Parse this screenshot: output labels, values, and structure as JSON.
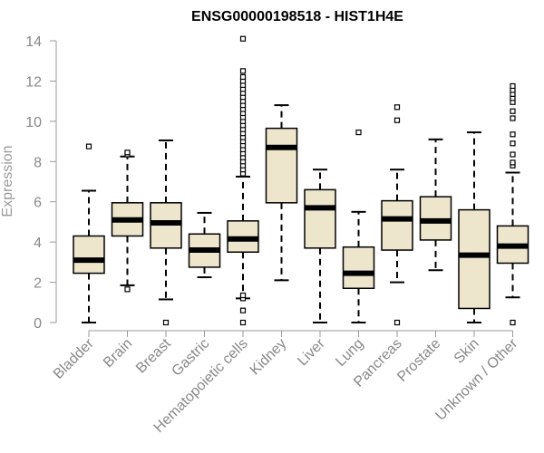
{
  "chart_data": {
    "type": "boxplot",
    "title": "ENSG00000198518 - HIST1H4E",
    "xlabel": "",
    "ylabel": "Expression",
    "ylim": [
      0,
      14
    ],
    "yticks": [
      0,
      2,
      4,
      6,
      8,
      10,
      12,
      14
    ],
    "categories": [
      "Bladder",
      "Brain",
      "Breast",
      "Gastric",
      "Hematopoietic cells",
      "Kidney",
      "Liver",
      "Lung",
      "Pancreas",
      "Prostate",
      "Skin",
      "Unknown / Other"
    ],
    "boxes": [
      {
        "name": "Bladder",
        "whisker_low": 0.0,
        "q1": 2.45,
        "median": 3.1,
        "q3": 4.3,
        "whisker_high": 6.55,
        "outliers": [
          8.75
        ]
      },
      {
        "name": "Brain",
        "whisker_low": 1.85,
        "q1": 4.3,
        "median": 5.1,
        "q3": 5.95,
        "whisker_high": 8.25,
        "outliers": [
          1.65,
          8.35,
          8.45
        ]
      },
      {
        "name": "Breast",
        "whisker_low": 1.15,
        "q1": 3.7,
        "median": 4.95,
        "q3": 5.95,
        "whisker_high": 9.05,
        "outliers": [
          0.0
        ]
      },
      {
        "name": "Gastric",
        "whisker_low": 2.25,
        "q1": 2.75,
        "median": 3.6,
        "q3": 4.4,
        "whisker_high": 5.45,
        "outliers": []
      },
      {
        "name": "Hematopoietic cells",
        "whisker_low": 1.2,
        "q1": 3.5,
        "median": 4.15,
        "q3": 5.05,
        "whisker_high": 7.25,
        "outliers": [
          0.0,
          0.6,
          1.2,
          1.35,
          7.4,
          7.6,
          7.8,
          8.0,
          8.2,
          8.4,
          8.6,
          8.8,
          9.0,
          9.2,
          9.4,
          9.6,
          9.8,
          10.0,
          10.2,
          10.4,
          10.6,
          10.8,
          11.0,
          11.2,
          11.4,
          11.6,
          11.8,
          12.0,
          12.2,
          12.5,
          14.1
        ]
      },
      {
        "name": "Kidney",
        "whisker_low": 2.1,
        "q1": 5.95,
        "median": 8.7,
        "q3": 9.65,
        "whisker_high": 10.8,
        "outliers": []
      },
      {
        "name": "Liver",
        "whisker_low": 0.0,
        "q1": 3.7,
        "median": 5.7,
        "q3": 6.6,
        "whisker_high": 7.6,
        "outliers": []
      },
      {
        "name": "Lung",
        "whisker_low": 0.0,
        "q1": 1.7,
        "median": 2.45,
        "q3": 3.75,
        "whisker_high": 5.5,
        "outliers": [
          9.45
        ]
      },
      {
        "name": "Pancreas",
        "whisker_low": 2.0,
        "q1": 3.6,
        "median": 5.15,
        "q3": 6.05,
        "whisker_high": 7.6,
        "outliers": [
          0.0,
          10.05,
          10.7
        ]
      },
      {
        "name": "Prostate",
        "whisker_low": 2.6,
        "q1": 4.1,
        "median": 5.05,
        "q3": 6.25,
        "whisker_high": 9.1,
        "outliers": []
      },
      {
        "name": "Skin",
        "whisker_low": 0.0,
        "q1": 0.7,
        "median": 3.35,
        "q3": 5.6,
        "whisker_high": 9.45,
        "outliers": []
      },
      {
        "name": "Unknown / Other",
        "whisker_low": 1.25,
        "q1": 2.95,
        "median": 3.8,
        "q3": 4.8,
        "whisker_high": 7.45,
        "outliers": [
          0.0,
          7.8,
          7.95,
          8.35,
          8.9,
          9.35,
          10.15,
          10.5,
          10.95,
          11.15,
          11.35,
          11.55,
          11.75
        ]
      }
    ],
    "colors": {
      "box_fill": "#ede6cc",
      "box_stroke": "#000000",
      "median": "#000000",
      "axis": "#999999",
      "text": "#888888",
      "title": "#000000"
    }
  }
}
